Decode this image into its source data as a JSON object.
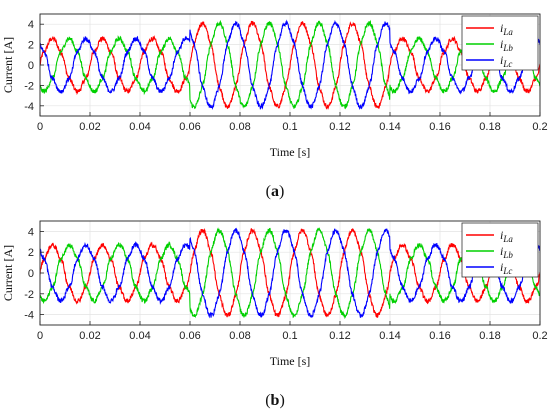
{
  "chart_data": [
    {
      "type": "line",
      "panel": "a",
      "caption": "(a)",
      "xlabel": "Time [s]",
      "ylabel": "Current [A]",
      "xlim": [
        0,
        0.2
      ],
      "ylim": [
        -5,
        5
      ],
      "xticks": [
        0,
        0.02,
        0.04,
        0.06,
        0.08,
        0.1,
        0.12,
        0.14,
        0.16,
        0.18,
        0.2
      ],
      "xtick_labels": [
        "0",
        "0.02",
        "0.04",
        "0.06",
        "0.08",
        "0.1",
        "0.12",
        "0.14",
        "0.16",
        "0.18",
        "0.2"
      ],
      "yticks": [
        -4,
        -2,
        0,
        2,
        4
      ],
      "ytick_labels": [
        "-4",
        "-2",
        "0",
        "2",
        "4"
      ],
      "grid": true,
      "legend_position": "top-right",
      "waveform": {
        "frequency_hz": 50,
        "segments": [
          {
            "t_start": 0,
            "t_end": 0.06,
            "amplitude": 2.5
          },
          {
            "t_start": 0.06,
            "t_end": 0.14,
            "amplitude": 4.0
          },
          {
            "t_start": 0.14,
            "t_end": 0.2,
            "amplitude": 2.5
          }
        ]
      },
      "series": [
        {
          "name": "i",
          "subscript": "La",
          "color": "#ff0000",
          "phase_deg": 0
        },
        {
          "name": "i",
          "subscript": "Lb",
          "color": "#00d000",
          "phase_deg": -120
        },
        {
          "name": "i",
          "subscript": "Lc",
          "color": "#0000ff",
          "phase_deg": 120
        }
      ]
    },
    {
      "type": "line",
      "panel": "b",
      "caption": "(b)",
      "xlabel": "Time [s]",
      "ylabel": "Current [A]",
      "xlim": [
        0,
        0.2
      ],
      "ylim": [
        -5,
        5
      ],
      "xticks": [
        0,
        0.02,
        0.04,
        0.06,
        0.08,
        0.1,
        0.12,
        0.14,
        0.16,
        0.18,
        0.2
      ],
      "xtick_labels": [
        "0",
        "0.02",
        "0.04",
        "0.06",
        "0.08",
        "0.1",
        "0.12",
        "0.14",
        "0.16",
        "0.18",
        "0.2"
      ],
      "yticks": [
        -4,
        -2,
        0,
        2,
        4
      ],
      "ytick_labels": [
        "-4",
        "-2",
        "0",
        "2",
        "4"
      ],
      "grid": true,
      "legend_position": "top-right",
      "waveform": {
        "frequency_hz": 50,
        "segments": [
          {
            "t_start": 0,
            "t_end": 0.06,
            "amplitude": 2.6
          },
          {
            "t_start": 0.06,
            "t_end": 0.14,
            "amplitude": 4.0
          },
          {
            "t_start": 0.14,
            "t_end": 0.2,
            "amplitude": 2.6
          }
        ]
      },
      "series": [
        {
          "name": "i",
          "subscript": "La",
          "color": "#ff0000",
          "phase_deg": 0
        },
        {
          "name": "i",
          "subscript": "Lb",
          "color": "#00d000",
          "phase_deg": -120
        },
        {
          "name": "i",
          "subscript": "Lc",
          "color": "#0000ff",
          "phase_deg": 120
        }
      ]
    }
  ]
}
